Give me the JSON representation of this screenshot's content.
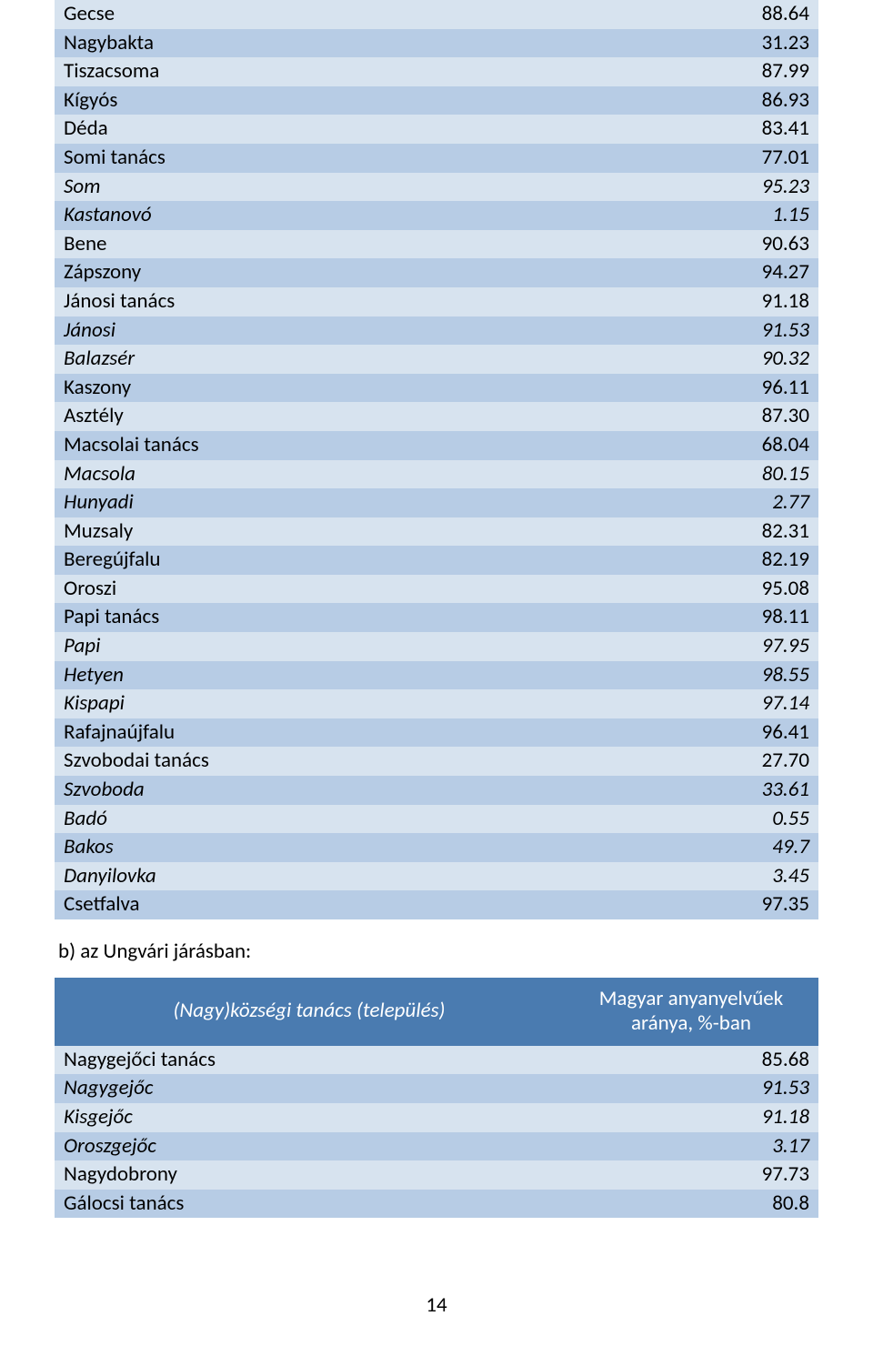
{
  "colors": {
    "band_light": "#d7e3ef",
    "band_dark": "#b7cce5",
    "header_bg": "#4a7bb0",
    "header_text": "#ffffff",
    "text": "#000000"
  },
  "table1": {
    "rows": [
      {
        "name": "Gecse",
        "value": "88.64",
        "italic": false
      },
      {
        "name": "Nagybakta",
        "value": "31.23",
        "italic": false
      },
      {
        "name": "Tiszacsoma",
        "value": "87.99",
        "italic": false
      },
      {
        "name": "Kígyós",
        "value": "86.93",
        "italic": false
      },
      {
        "name": "Déda",
        "value": "83.41",
        "italic": false
      },
      {
        "name": "Somi tanács",
        "value": "77.01",
        "italic": false
      },
      {
        "name": "Som",
        "value": "95.23",
        "italic": true
      },
      {
        "name": "Kastanovó",
        "value": "1.15",
        "italic": true
      },
      {
        "name": "Bene",
        "value": "90.63",
        "italic": false
      },
      {
        "name": "Zápszony",
        "value": "94.27",
        "italic": false
      },
      {
        "name": "Jánosi tanács",
        "value": "91.18",
        "italic": false
      },
      {
        "name": "Jánosi",
        "value": "91.53",
        "italic": true
      },
      {
        "name": "Balazsér",
        "value": "90.32",
        "italic": true
      },
      {
        "name": "Kaszony",
        "value": "96.11",
        "italic": false
      },
      {
        "name": "Asztély",
        "value": "87.30",
        "italic": false
      },
      {
        "name": "Macsolai tanács",
        "value": "68.04",
        "italic": false
      },
      {
        "name": "Macsola",
        "value": "80.15",
        "italic": true
      },
      {
        "name": "Hunyadi",
        "value": "2.77",
        "italic": true
      },
      {
        "name": "Muzsaly",
        "value": "82.31",
        "italic": false
      },
      {
        "name": "Beregújfalu",
        "value": "82.19",
        "italic": false
      },
      {
        "name": "Oroszi",
        "value": "95.08",
        "italic": false
      },
      {
        "name": "Papi tanács",
        "value": "98.11",
        "italic": false
      },
      {
        "name": "Papi",
        "value": "97.95",
        "italic": true
      },
      {
        "name": "Hetyen",
        "value": "98.55",
        "italic": true
      },
      {
        "name": "Kispapi",
        "value": "97.14",
        "italic": true
      },
      {
        "name": "Rafajnaújfalu",
        "value": "96.41",
        "italic": false
      },
      {
        "name": "Szvobodai tanács",
        "value": "27.70",
        "italic": false
      },
      {
        "name": "Szvoboda",
        "value": "33.61",
        "italic": true
      },
      {
        "name": "Badó",
        "value": "0.55",
        "italic": true
      },
      {
        "name": "Bakos",
        "value": "49.7",
        "italic": true
      },
      {
        "name": "Danyilovka",
        "value": "3.45",
        "italic": true
      },
      {
        "name": "Csetfalva",
        "value": "97.35",
        "italic": false
      }
    ]
  },
  "subtitle_b": "b) az Ungvári járásban:",
  "table2": {
    "header_left": "(Nagy)községi tanács (település)",
    "header_right_line1": "Magyar anyanyelvűek",
    "header_right_line2": "aránya, %-ban",
    "rows": [
      {
        "name": "Nagygejőci tanács",
        "value": "85.68",
        "italic": false
      },
      {
        "name": "Nagygejőc",
        "value": "91.53",
        "italic": true
      },
      {
        "name": "Kisgejőc",
        "value": "91.18",
        "italic": true
      },
      {
        "name": "Oroszgejőc",
        "value": "3.17",
        "italic": true
      },
      {
        "name": "Nagydobrony",
        "value": "97.73",
        "italic": false
      },
      {
        "name": "Gálocsi tanács",
        "value": "80.8",
        "italic": false
      }
    ]
  },
  "page_number": "14"
}
